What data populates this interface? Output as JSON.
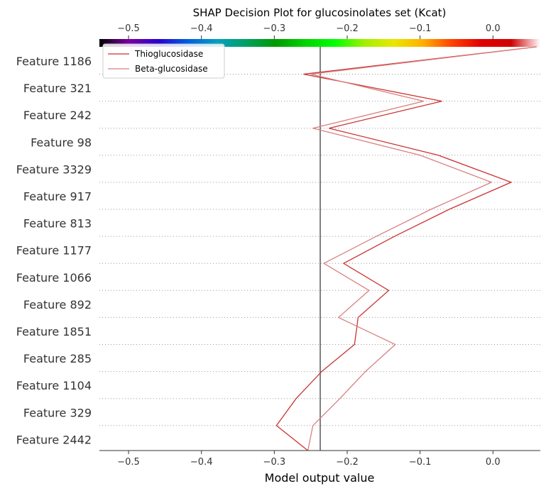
{
  "chart_data": {
    "type": "line",
    "title": "SHAP Decision Plot for glucosinolates set (Kcat)",
    "xlabel": "Model output value",
    "ylabel": "",
    "xlim": [
      -0.54,
      0.065
    ],
    "xticks": [
      -0.5,
      -0.4,
      -0.3,
      -0.2,
      -0.1,
      0.0
    ],
    "xtick_labels": [
      "−0.5",
      "−0.4",
      "−0.3",
      "−0.2",
      "−0.1",
      "0.0"
    ],
    "base_value": -0.237,
    "features": [
      "Feature 1186",
      "Feature 321",
      "Feature 242",
      "Feature 98",
      "Feature 3329",
      "Feature 917",
      "Feature 813",
      "Feature 1177",
      "Feature 1066",
      "Feature 892",
      "Feature 1851",
      "Feature 285",
      "Feature 1104",
      "Feature 329",
      "Feature 2442"
    ],
    "legend_position": "top-left",
    "colorbar": {
      "colors": [
        "#000000",
        "#7a00a0",
        "#2a00d0",
        "#0060e0",
        "#00a0c0",
        "#00a060",
        "#009a00",
        "#00d400",
        "#00ff00",
        "#a0f000",
        "#e8e800",
        "#ffb000",
        "#ff4000",
        "#e00000",
        "#d00000",
        "#ffffff"
      ]
    },
    "series": [
      {
        "name": "Thioglucosidase",
        "color": "#cc3333",
        "values": [
          0.06,
          -0.26,
          -0.07,
          -0.225,
          -0.075,
          0.025,
          -0.06,
          -0.135,
          -0.205,
          -0.143,
          -0.185,
          -0.19,
          -0.235,
          -0.27,
          -0.297,
          -0.254
        ]
      },
      {
        "name": "Beta-glucosidase",
        "color": "#d98080",
        "values": [
          0.06,
          -0.25,
          -0.095,
          -0.247,
          -0.1,
          -0.002,
          -0.085,
          -0.16,
          -0.232,
          -0.17,
          -0.212,
          -0.134,
          -0.175,
          -0.21,
          -0.247,
          -0.254
        ]
      }
    ]
  }
}
